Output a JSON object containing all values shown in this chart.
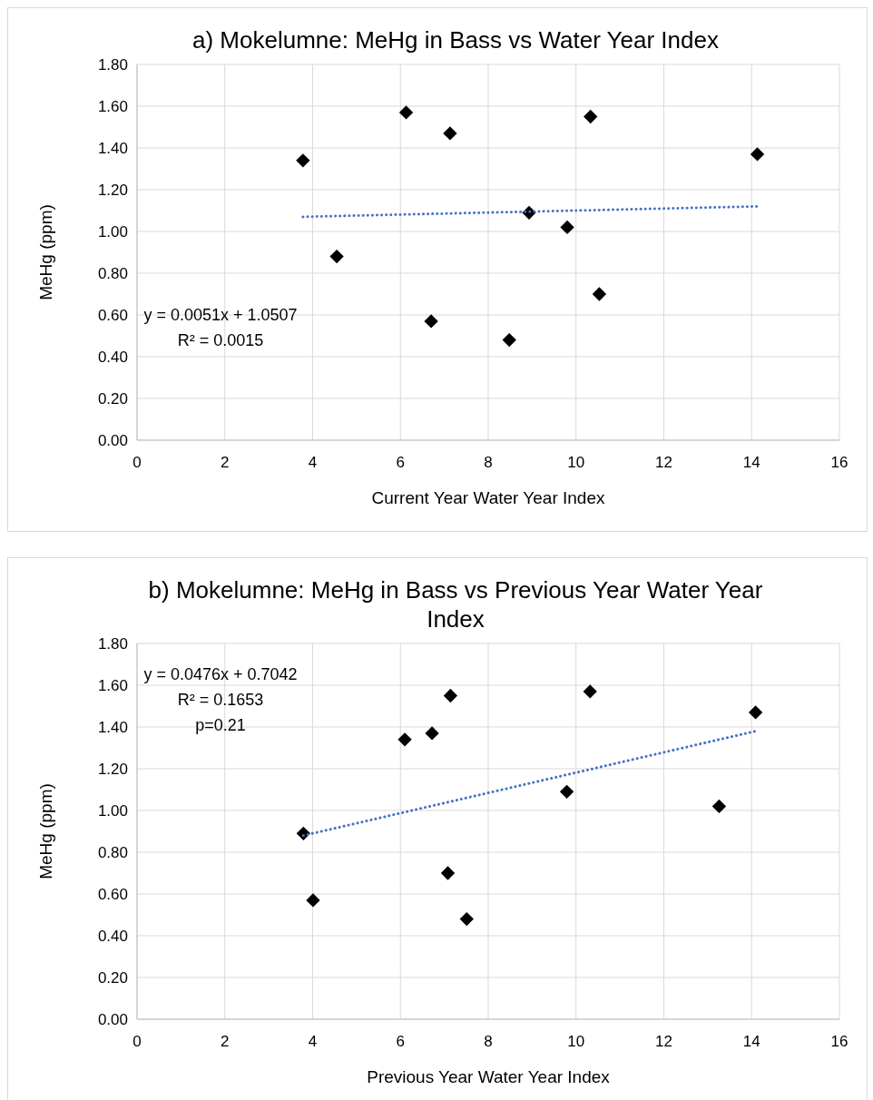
{
  "chart_data": [
    {
      "type": "scatter",
      "title": "a) Mokelumne: MeHg in Bass vs Water Year Index",
      "xlabel": "Current Year Water Year Index",
      "ylabel": "MeHg (ppm)",
      "xlim": [
        0,
        16
      ],
      "xticks": [
        0,
        2,
        4,
        6,
        8,
        10,
        12,
        14,
        16
      ],
      "ylim": [
        0,
        1.8
      ],
      "yticks": [
        {
          "value": 0,
          "label": "0.00"
        },
        {
          "value": 0.2,
          "label": "0.20"
        },
        {
          "value": 0.4,
          "label": "0.40"
        },
        {
          "value": 0.6,
          "label": "0.60"
        },
        {
          "value": 0.8,
          "label": "0.80"
        },
        {
          "value": 1,
          "label": "1.00"
        },
        {
          "value": 1.2,
          "label": "1.20"
        },
        {
          "value": 1.4,
          "label": "1.40"
        },
        {
          "value": 1.6,
          "label": "1.60"
        },
        {
          "value": 1.8,
          "label": "1.80"
        }
      ],
      "grid": true,
      "annotations": [
        "y = 0.0051x + 1.0507",
        "R² = 0.0015"
      ],
      "series": [
        {
          "marker": "diamond",
          "color": "#000000",
          "x": [
            3.78,
            4.55,
            6.13,
            7.13,
            6.7,
            8.48,
            8.93,
            9.8,
            10.33,
            10.53,
            14.13
          ],
          "values": [
            1.34,
            0.88,
            1.57,
            1.47,
            0.57,
            0.48,
            1.09,
            1.02,
            1.55,
            0.7,
            1.37
          ]
        },
        {
          "type": "line",
          "line_style": "dotted",
          "color": "#4472c4",
          "x": [
            3.78,
            14.13
          ],
          "values": [
            1.07,
            1.12
          ]
        }
      ]
    },
    {
      "type": "scatter",
      "title": "b) Mokelumne: MeHg in Bass vs Previous Year Water Year Index",
      "xlabel": "Previous Year Water Year Index",
      "ylabel": "MeHg (ppm)",
      "xlim": [
        0,
        16
      ],
      "xticks": [
        0,
        2,
        4,
        6,
        8,
        10,
        12,
        14,
        16
      ],
      "ylim": [
        0,
        1.8
      ],
      "yticks": [
        {
          "value": 0,
          "label": "0.00"
        },
        {
          "value": 0.2,
          "label": "0.20"
        },
        {
          "value": 0.4,
          "label": "0.40"
        },
        {
          "value": 0.6,
          "label": "0.60"
        },
        {
          "value": 0.8,
          "label": "0.80"
        },
        {
          "value": 1,
          "label": "1.00"
        },
        {
          "value": 1.2,
          "label": "1.20"
        },
        {
          "value": 1.4,
          "label": "1.40"
        },
        {
          "value": 1.6,
          "label": "1.60"
        },
        {
          "value": 1.8,
          "label": "1.80"
        }
      ],
      "grid": true,
      "annotations": [
        "y = 0.0476x + 0.7042",
        "R² = 0.1653",
        "p=0.21"
      ],
      "series": [
        {
          "marker": "diamond",
          "color": "#000000",
          "x": [
            3.79,
            4.01,
            6.1,
            6.72,
            7.14,
            7.08,
            7.51,
            9.79,
            10.32,
            13.26,
            14.09
          ],
          "values": [
            0.89,
            0.57,
            1.34,
            1.37,
            1.55,
            0.7,
            0.48,
            1.09,
            1.57,
            1.02,
            1.47
          ]
        },
        {
          "type": "line",
          "line_style": "dotted",
          "color": "#4472c4",
          "x": [
            3.79,
            14.09
          ],
          "values": [
            0.88,
            1.38
          ]
        }
      ]
    }
  ]
}
